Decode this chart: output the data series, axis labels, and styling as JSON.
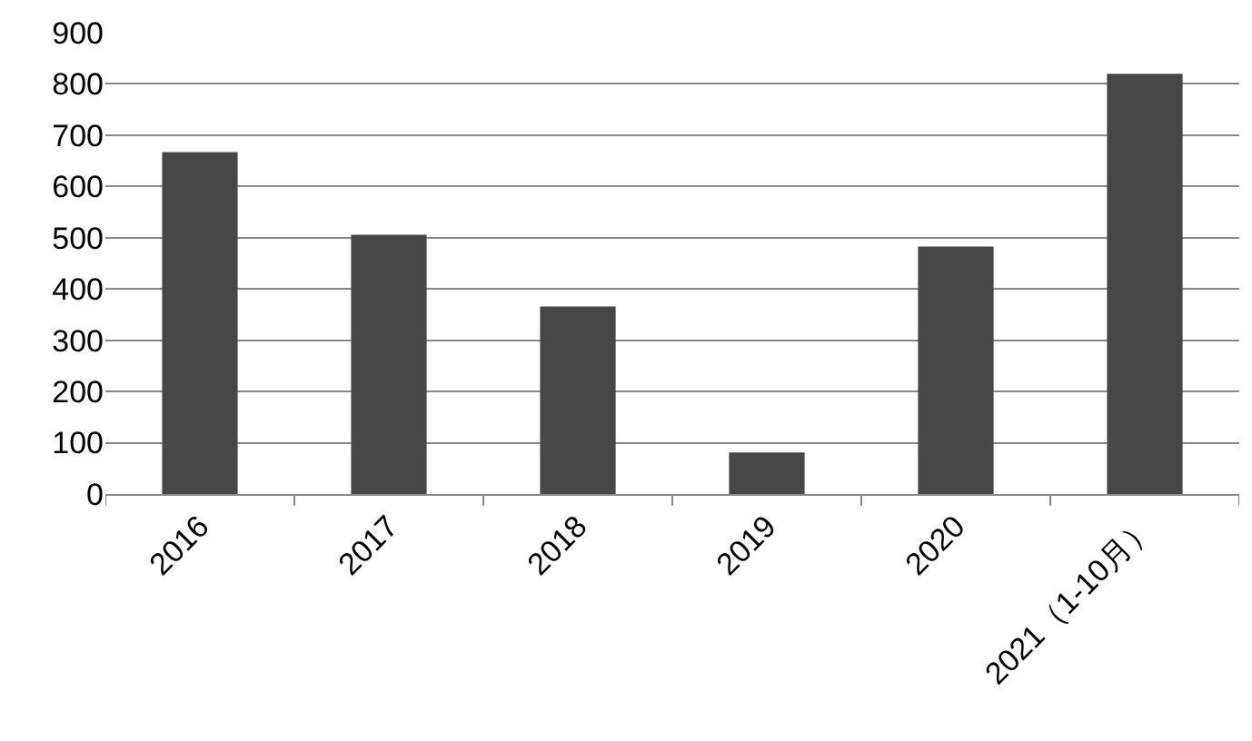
{
  "chart_data": {
    "type": "bar",
    "categories": [
      "2016",
      "2017",
      "2018",
      "2019",
      "2020",
      "2021（1-10月）"
    ],
    "values": [
      667,
      506,
      366,
      81,
      483,
      820
    ],
    "color": "#474747",
    "ylim": [
      0,
      900
    ],
    "yticks": [
      0,
      100,
      200,
      300,
      400,
      500,
      600,
      700,
      800,
      900
    ],
    "grid": "y"
  }
}
